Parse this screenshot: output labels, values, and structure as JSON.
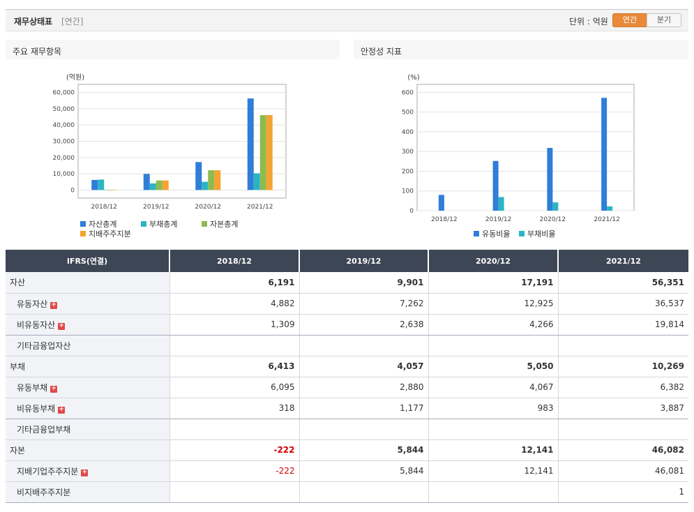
{
  "header": {
    "title": "재무상태표",
    "subtitle": "[연간]",
    "unit_label": "단위 : 억원",
    "period_annual": "연간",
    "period_quarter": "분기"
  },
  "panels": {
    "left_title": "주요 재무항목",
    "right_title": "안정성 지표"
  },
  "chart_data": [
    {
      "type": "bar",
      "title": "주요 재무항목",
      "ylabel": "(억원)",
      "categories": [
        "2018/12",
        "2019/12",
        "2020/12",
        "2021/12"
      ],
      "ylim": [
        -5000,
        65000
      ],
      "yticks": [
        0,
        10000,
        20000,
        30000,
        40000,
        50000,
        60000
      ],
      "ytick_labels": [
        "0",
        "10,000",
        "20,000",
        "30,000",
        "40,000",
        "50,000",
        "60,000"
      ],
      "series": [
        {
          "name": "자산총계",
          "color": "#2f7ed8",
          "values": [
            6191,
            9901,
            17191,
            56351
          ]
        },
        {
          "name": "부채총계",
          "color": "#2bb5c4",
          "values": [
            6413,
            4057,
            5050,
            10269
          ]
        },
        {
          "name": "자본총계",
          "color": "#8dbb4f",
          "values": [
            -222,
            5844,
            12141,
            46082
          ]
        },
        {
          "name": "지배주주지분",
          "color": "#f5a331",
          "values": [
            -222,
            5844,
            12141,
            46081
          ]
        }
      ]
    },
    {
      "type": "bar",
      "title": "안정성 지표",
      "ylabel": "(%)",
      "categories": [
        "2018/12",
        "2019/12",
        "2020/12",
        "2021/12"
      ],
      "ylim": [
        0,
        640
      ],
      "yticks": [
        0,
        100,
        200,
        300,
        400,
        500,
        600
      ],
      "ytick_labels": [
        "0",
        "100",
        "200",
        "300",
        "400",
        "500",
        "600"
      ],
      "series": [
        {
          "name": "유동비율",
          "color": "#2f7ed8",
          "values": [
            80,
            252,
            318,
            572
          ]
        },
        {
          "name": "부채비율",
          "color": "#2bb5c4",
          "values": [
            0,
            69,
            42,
            22
          ]
        }
      ]
    }
  ],
  "table": {
    "header": [
      "IFRS(연결)",
      "2018/12",
      "2019/12",
      "2020/12",
      "2021/12"
    ],
    "rows": [
      {
        "label": "자산",
        "values": [
          "6,191",
          "9,901",
          "17,191",
          "56,351"
        ]
      },
      {
        "label": "유동자산",
        "values": [
          "4,882",
          "7,262",
          "12,925",
          "36,537"
        ]
      },
      {
        "label": "비유동자산",
        "values": [
          "1,309",
          "2,638",
          "4,266",
          "19,814"
        ]
      },
      {
        "label": "기타금융업자산",
        "values": [
          "",
          "",
          "",
          ""
        ]
      },
      {
        "label": "부채",
        "values": [
          "6,413",
          "4,057",
          "5,050",
          "10,269"
        ]
      },
      {
        "label": "유동부채",
        "values": [
          "6,095",
          "2,880",
          "4,067",
          "6,382"
        ]
      },
      {
        "label": "비유동부채",
        "values": [
          "318",
          "1,177",
          "983",
          "3,887"
        ]
      },
      {
        "label": "기타금융업부채",
        "values": [
          "",
          "",
          "",
          ""
        ]
      },
      {
        "label": "자본",
        "values": [
          "-222",
          "5,844",
          "12,141",
          "46,082"
        ]
      },
      {
        "label": "지배기업주주지분",
        "values": [
          "-222",
          "5,844",
          "12,141",
          "46,081"
        ]
      },
      {
        "label": "비지배주주지분",
        "values": [
          "",
          "",
          "",
          "1"
        ]
      }
    ]
  }
}
